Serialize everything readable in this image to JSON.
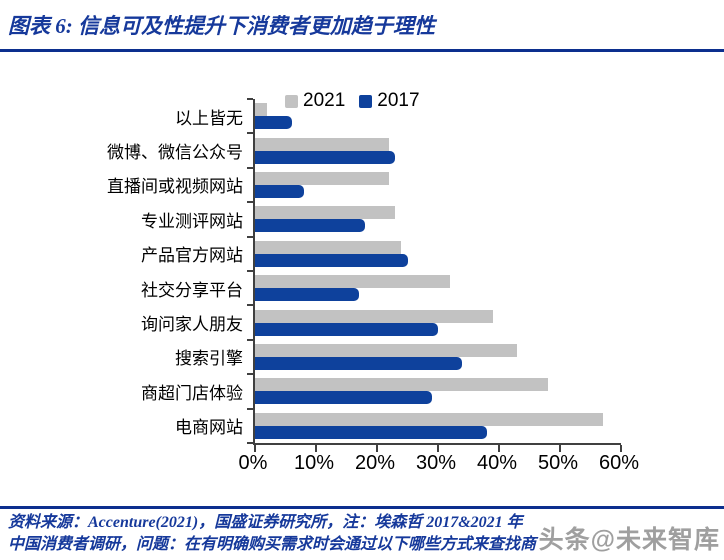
{
  "header": {
    "title": "图表 6:  信息可及性提升下消费者更加趋于理性"
  },
  "chart_data": {
    "type": "bar",
    "orientation": "horizontal",
    "title": "",
    "xlabel": "",
    "ylabel": "",
    "xlim": [
      0,
      60
    ],
    "x_ticks": [
      "0%",
      "10%",
      "20%",
      "30%",
      "40%",
      "50%",
      "60%"
    ],
    "grid": false,
    "legend_position": "top",
    "categories_top_to_bottom": [
      "以上皆无",
      "微博、微信公众号",
      "直播间或视频网站",
      "专业测评网站",
      "产品官方网站",
      "社交分享平台",
      "询问家人朋友",
      "搜索引擎",
      "商超门店体验",
      "电商网站"
    ],
    "series": [
      {
        "name": "2021",
        "color": "#C2C2C2",
        "values": [
          2,
          22,
          22,
          23,
          24,
          32,
          39,
          43,
          48,
          57
        ]
      },
      {
        "name": "2017",
        "color": "#0E419C",
        "values": [
          6,
          23,
          8,
          18,
          25,
          17,
          30,
          34,
          29,
          38
        ]
      }
    ],
    "value_unit": "%"
  },
  "footer": {
    "line1": "资料来源：Accenture(2021)，国盛证券研究所，注：埃森哲 2017&2021 年",
    "line2": "中国消费者调研，问题：在有明确购买需求时会通过以下哪些方式来查找商"
  },
  "watermark": {
    "text": "头条@未来智库"
  },
  "colors": {
    "accent_blue": "#16399B",
    "rule_blue": "#0C2F8E",
    "bar_gray": "#C2C2C2",
    "bar_blue": "#0E419C",
    "axis": "#404040"
  }
}
